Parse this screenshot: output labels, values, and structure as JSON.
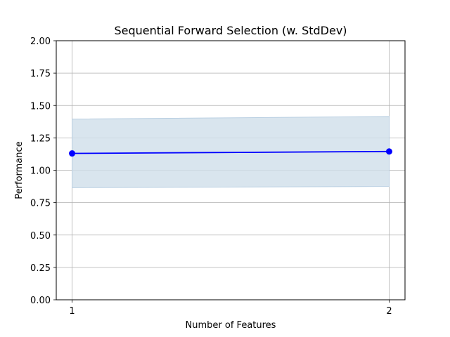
{
  "chart_data": {
    "type": "line",
    "title": "Sequential Forward Selection (w. StdDev)",
    "xlabel": "Number of Features",
    "ylabel": "Performance",
    "x": [
      1,
      2
    ],
    "xticks": [
      "1",
      "2"
    ],
    "xlim": [
      0.95,
      2.05
    ],
    "ylim": [
      0.0,
      2.0
    ],
    "yticks": [
      "0.00",
      "0.25",
      "0.50",
      "0.75",
      "1.00",
      "1.25",
      "1.50",
      "1.75",
      "2.00"
    ],
    "grid": true,
    "series": [
      {
        "values": [
          1.13,
          1.145
        ],
        "lower": [
          0.865,
          0.875
        ],
        "upper": [
          1.395,
          1.415
        ],
        "line_color": "#0000ff",
        "band_color": "#cfdeea",
        "marker": "circle"
      }
    ]
  }
}
